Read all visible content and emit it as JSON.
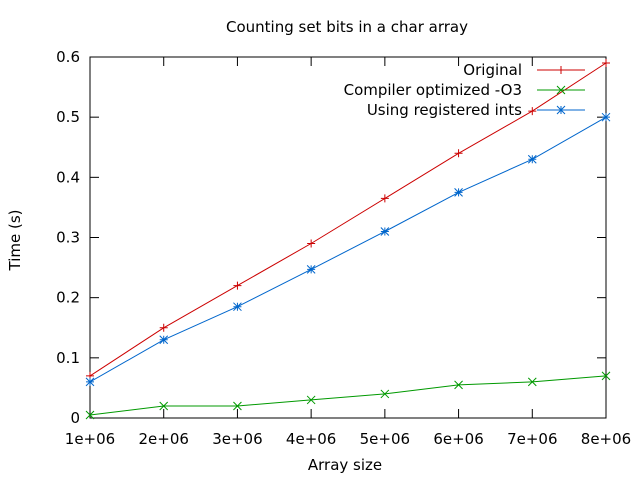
{
  "chart_data": {
    "type": "line",
    "title": "Counting set bits in a char array",
    "xlabel": "Array size",
    "ylabel": "Time (s)",
    "xlim": [
      1000000,
      8000000
    ],
    "ylim": [
      0,
      0.6
    ],
    "x_ticks": [
      {
        "value": 1000000,
        "label": "1e+06"
      },
      {
        "value": 2000000,
        "label": "2e+06"
      },
      {
        "value": 3000000,
        "label": "3e+06"
      },
      {
        "value": 4000000,
        "label": "4e+06"
      },
      {
        "value": 5000000,
        "label": "5e+06"
      },
      {
        "value": 6000000,
        "label": "6e+06"
      },
      {
        "value": 7000000,
        "label": "7e+06"
      },
      {
        "value": 8000000,
        "label": "8e+06"
      }
    ],
    "y_ticks": [
      {
        "value": 0,
        "label": "0"
      },
      {
        "value": 0.1,
        "label": "0.1"
      },
      {
        "value": 0.2,
        "label": "0.2"
      },
      {
        "value": 0.3,
        "label": "0.3"
      },
      {
        "value": 0.4,
        "label": "0.4"
      },
      {
        "value": 0.5,
        "label": "0.5"
      },
      {
        "value": 0.6,
        "label": "0.6"
      }
    ],
    "grid": false,
    "legend_position": "top-right",
    "x": [
      1000000,
      2000000,
      3000000,
      4000000,
      5000000,
      6000000,
      7000000,
      8000000
    ],
    "series": [
      {
        "name": "Original",
        "color": "#cc0000",
        "marker": "plus",
        "values": [
          0.07,
          0.15,
          0.22,
          0.29,
          0.365,
          0.44,
          0.51,
          0.59
        ]
      },
      {
        "name": "Compiler optimized -O3",
        "color": "#009900",
        "marker": "cross",
        "values": [
          0.005,
          0.02,
          0.02,
          0.03,
          0.04,
          0.055,
          0.06,
          0.07
        ]
      },
      {
        "name": "Using registered ints",
        "color": "#0066cc",
        "marker": "star",
        "values": [
          0.06,
          0.13,
          0.185,
          0.247,
          0.31,
          0.375,
          0.43,
          0.5
        ]
      }
    ]
  }
}
